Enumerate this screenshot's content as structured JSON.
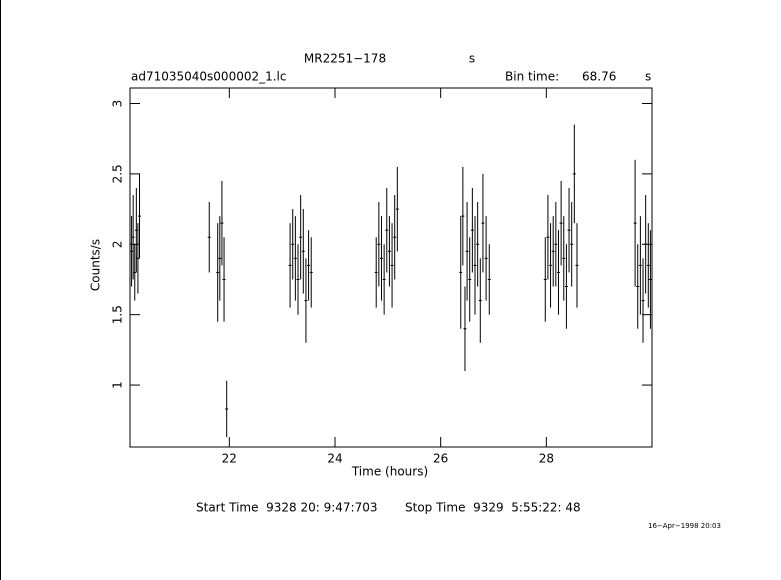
{
  "chart_data": {
    "type": "errorbar",
    "title": "MR2251−178",
    "title_unit": "s",
    "file": "ad71035040s000002_1.lc",
    "bin_time_label": "Bin time:",
    "bin_time": "68.76",
    "bin_time_unit": "s",
    "x_label": "Time (hours)",
    "y_label": "Counts/s",
    "start_time": "Start Time  9328 20: 9:47:703",
    "stop_time": "Stop Time  9329  5:55:22: 48",
    "date": "16−Apr−1998 20:03",
    "xlim": [
      20.12,
      30.0
    ],
    "ylim": [
      0.56,
      3.11
    ],
    "xticks": [
      22,
      24,
      26,
      28
    ],
    "yticks": [
      1,
      1.5,
      2,
      2.5,
      3
    ],
    "color": "#000000",
    "x": [
      20.15,
      20.18,
      20.21,
      20.24,
      20.27,
      20.3,
      21.62,
      21.78,
      21.82,
      21.86,
      21.9,
      21.95,
      23.15,
      23.2,
      23.25,
      23.3,
      23.35,
      23.4,
      23.45,
      23.5,
      23.55,
      24.78,
      24.83,
      24.88,
      24.93,
      24.98,
      25.03,
      25.08,
      25.13,
      25.18,
      26.38,
      26.42,
      26.46,
      26.5,
      26.55,
      26.6,
      26.65,
      26.7,
      26.75,
      26.8,
      26.86,
      26.92,
      27.98,
      28.03,
      28.08,
      28.13,
      28.18,
      28.23,
      28.28,
      28.33,
      28.38,
      28.43,
      28.48,
      28.53,
      28.58,
      29.68,
      29.73,
      29.78,
      29.83,
      29.88,
      29.93,
      29.97
    ],
    "values": [
      1.95,
      2.05,
      1.8,
      2.1,
      1.9,
      2.2,
      2.05,
      1.8,
      1.9,
      2.15,
      1.75,
      0.83,
      1.85,
      2.0,
      1.9,
      1.75,
      2.05,
      1.95,
      1.6,
      1.85,
      1.8,
      1.8,
      2.0,
      1.9,
      1.75,
      2.1,
      1.95,
      1.85,
      2.05,
      2.25,
      1.8,
      2.2,
      1.4,
      1.95,
      1.75,
      2.1,
      1.85,
      2.0,
      1.6,
      2.15,
      1.9,
      1.75,
      1.75,
      2.05,
      1.85,
      1.95,
      2.0,
      1.8,
      2.15,
      1.9,
      1.7,
      2.1,
      2.0,
      2.5,
      1.85,
      2.15,
      1.7,
      1.85,
      1.6,
      2.0,
      1.85,
      1.75
    ],
    "errors": [
      0.25,
      0.3,
      0.2,
      0.3,
      0.25,
      0.3,
      0.25,
      0.35,
      0.3,
      0.3,
      0.3,
      0.2,
      0.3,
      0.25,
      0.3,
      0.25,
      0.3,
      0.3,
      0.3,
      0.25,
      0.25,
      0.25,
      0.3,
      0.3,
      0.25,
      0.3,
      0.25,
      0.3,
      0.3,
      0.3,
      0.4,
      0.35,
      0.3,
      0.35,
      0.3,
      0.3,
      0.35,
      0.3,
      0.3,
      0.35,
      0.3,
      0.25,
      0.3,
      0.3,
      0.3,
      0.25,
      0.3,
      0.3,
      0.3,
      0.3,
      0.3,
      0.3,
      0.3,
      0.35,
      0.3,
      0.45,
      0.3,
      0.35,
      0.3,
      0.35,
      0.3,
      0.35
    ]
  }
}
